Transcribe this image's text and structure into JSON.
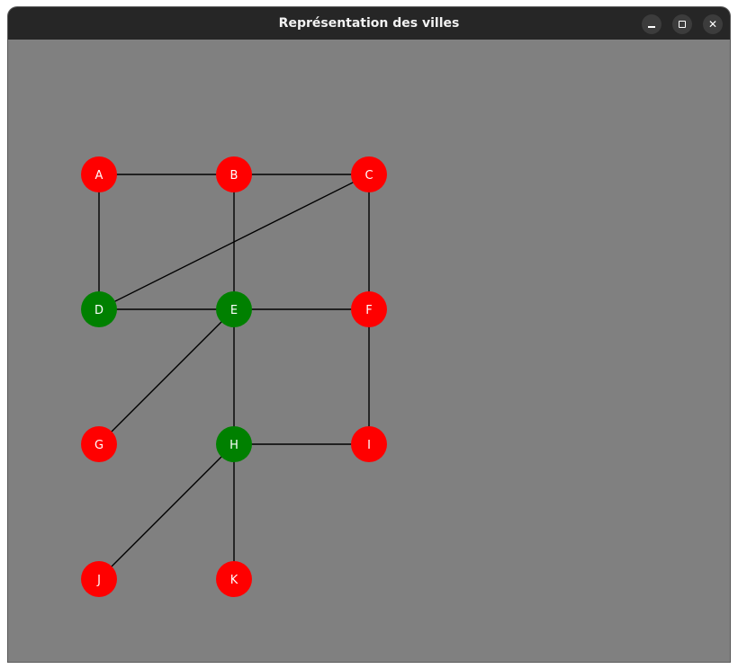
{
  "window": {
    "title": "Représentation des villes",
    "controls": {
      "minimize_icon": "minimize-icon",
      "maximize_icon": "maximize-icon",
      "close_icon": "close-icon",
      "close_glyph": "✕"
    }
  },
  "graph": {
    "background_color": "#808080",
    "edge_color": "#000000",
    "node_colors": {
      "red": "#ff0000",
      "green": "#008000"
    },
    "nodes": [
      {
        "id": "A",
        "color": "red",
        "col": 0,
        "row": 0
      },
      {
        "id": "B",
        "color": "red",
        "col": 1,
        "row": 0
      },
      {
        "id": "C",
        "color": "red",
        "col": 2,
        "row": 0
      },
      {
        "id": "D",
        "color": "green",
        "col": 0,
        "row": 1
      },
      {
        "id": "E",
        "color": "green",
        "col": 1,
        "row": 1
      },
      {
        "id": "F",
        "color": "red",
        "col": 2,
        "row": 1
      },
      {
        "id": "G",
        "color": "red",
        "col": 0,
        "row": 2
      },
      {
        "id": "H",
        "color": "green",
        "col": 1,
        "row": 2
      },
      {
        "id": "I",
        "color": "red",
        "col": 2,
        "row": 2
      },
      {
        "id": "J",
        "color": "red",
        "col": 0,
        "row": 3
      },
      {
        "id": "K",
        "color": "red",
        "col": 1,
        "row": 3
      }
    ],
    "edges": [
      [
        "A",
        "B"
      ],
      [
        "B",
        "C"
      ],
      [
        "A",
        "D"
      ],
      [
        "B",
        "E"
      ],
      [
        "C",
        "F"
      ],
      [
        "C",
        "D"
      ],
      [
        "D",
        "E"
      ],
      [
        "E",
        "F"
      ],
      [
        "E",
        "G"
      ],
      [
        "E",
        "H"
      ],
      [
        "F",
        "I"
      ],
      [
        "H",
        "I"
      ],
      [
        "H",
        "J"
      ],
      [
        "H",
        "K"
      ]
    ]
  }
}
